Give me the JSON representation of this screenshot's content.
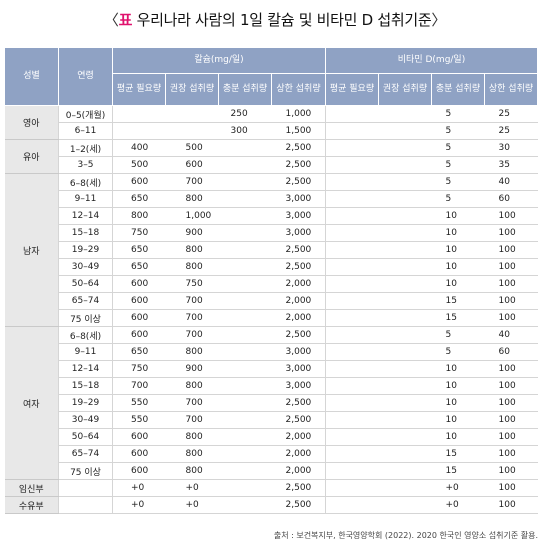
{
  "title": "표 우리나라 사람의 1일 칼슘 및 비타민 D 섭취기준",
  "title_parts": {
    "open": "〈",
    "highlight": "표",
    "text": "우리나라 사람의 1일 칼슘 및 비타민 D 섭취기준",
    "close": "〉"
  },
  "headers": {
    "sex": "성별",
    "age": "연령",
    "calcium": "칼슘(mg/일)",
    "vitamin_d": "비타민 D(mg/일)",
    "sub": [
      "평균 필요량",
      "권장 섭취량",
      "충분 섭취량",
      "상한 섭취량"
    ]
  },
  "groups": [
    {
      "label": "영아",
      "rows": [
        {
          "age": "0–5(개월)",
          "v": [
            "",
            "",
            "250",
            "1,000",
            "",
            "",
            "5",
            "25"
          ]
        },
        {
          "age": "6–11",
          "v": [
            "",
            "",
            "300",
            "1,500",
            "",
            "",
            "5",
            "25"
          ]
        }
      ]
    },
    {
      "label": "유아",
      "rows": [
        {
          "age": "1–2(세)",
          "v": [
            "400",
            "500",
            "",
            "2,500",
            "",
            "",
            "5",
            "30"
          ]
        },
        {
          "age": "3–5",
          "v": [
            "500",
            "600",
            "",
            "2,500",
            "",
            "",
            "5",
            "35"
          ]
        }
      ]
    },
    {
      "label": "남자",
      "rows": [
        {
          "age": "6–8(세)",
          "v": [
            "600",
            "700",
            "",
            "2,500",
            "",
            "",
            "5",
            "40"
          ]
        },
        {
          "age": "9–11",
          "v": [
            "650",
            "800",
            "",
            "3,000",
            "",
            "",
            "5",
            "60"
          ]
        },
        {
          "age": "12–14",
          "v": [
            "800",
            "1,000",
            "",
            "3,000",
            "",
            "",
            "10",
            "100"
          ]
        },
        {
          "age": "15–18",
          "v": [
            "750",
            "900",
            "",
            "3,000",
            "",
            "",
            "10",
            "100"
          ]
        },
        {
          "age": "19–29",
          "v": [
            "650",
            "800",
            "",
            "2,500",
            "",
            "",
            "10",
            "100"
          ]
        },
        {
          "age": "30–49",
          "v": [
            "650",
            "800",
            "",
            "2,500",
            "",
            "",
            "10",
            "100"
          ]
        },
        {
          "age": "50–64",
          "v": [
            "600",
            "750",
            "",
            "2,000",
            "",
            "",
            "10",
            "100"
          ]
        },
        {
          "age": "65–74",
          "v": [
            "600",
            "700",
            "",
            "2,000",
            "",
            "",
            "15",
            "100"
          ]
        },
        {
          "age": "75 이상",
          "v": [
            "600",
            "700",
            "",
            "2,000",
            "",
            "",
            "15",
            "100"
          ]
        }
      ]
    },
    {
      "label": "여자",
      "rows": [
        {
          "age": "6–8(세)",
          "v": [
            "600",
            "700",
            "",
            "2,500",
            "",
            "",
            "5",
            "40"
          ]
        },
        {
          "age": "9–11",
          "v": [
            "650",
            "800",
            "",
            "3,000",
            "",
            "",
            "5",
            "60"
          ]
        },
        {
          "age": "12–14",
          "v": [
            "750",
            "900",
            "",
            "3,000",
            "",
            "",
            "10",
            "100"
          ]
        },
        {
          "age": "15–18",
          "v": [
            "700",
            "800",
            "",
            "3,000",
            "",
            "",
            "10",
            "100"
          ]
        },
        {
          "age": "19–29",
          "v": [
            "550",
            "700",
            "",
            "2,500",
            "",
            "",
            "10",
            "100"
          ]
        },
        {
          "age": "30–49",
          "v": [
            "550",
            "700",
            "",
            "2,500",
            "",
            "",
            "10",
            "100"
          ]
        },
        {
          "age": "50–64",
          "v": [
            "600",
            "800",
            "",
            "2,000",
            "",
            "",
            "10",
            "100"
          ]
        },
        {
          "age": "65–74",
          "v": [
            "600",
            "800",
            "",
            "2,000",
            "",
            "",
            "15",
            "100"
          ]
        },
        {
          "age": "75 이상",
          "v": [
            "600",
            "800",
            "",
            "2,000",
            "",
            "",
            "15",
            "100"
          ]
        }
      ]
    },
    {
      "label": "임신부",
      "rows": [
        {
          "age": "",
          "v": [
            "+0",
            "+0",
            "",
            "2,500",
            "",
            "",
            "+0",
            "100"
          ]
        }
      ]
    },
    {
      "label": "수유부",
      "rows": [
        {
          "age": "",
          "v": [
            "+0",
            "+0",
            "",
            "2,500",
            "",
            "",
            "+0",
            "100"
          ]
        }
      ]
    }
  ],
  "source": "출처 : 보건복지부, 한국영양학회 (2022). 2020 한국인 영양소 섭취기준 활용.",
  "colors": {
    "header_bg": "#8fa2c4",
    "group_bg": "#e8e8e8",
    "title_highlight": "#e0116d",
    "rule": "#d5d5d5"
  }
}
